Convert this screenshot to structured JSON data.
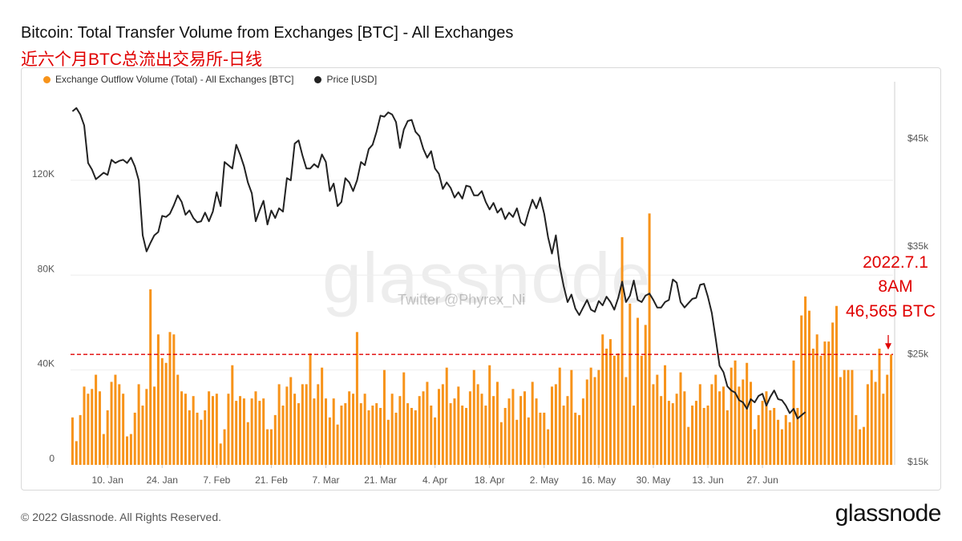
{
  "header": {
    "title": "Bitcoin: Total Transfer Volume from Exchanges [BTC] - All Exchanges",
    "subtitle": "近六个月BTC总流出交易所-日线"
  },
  "legend": {
    "outflow_label": "Exchange Outflow Volume (Total) - All Exchanges [BTC]",
    "price_label": "Price [USD]"
  },
  "watermark": {
    "brand": "glassnode",
    "twitter": "Twitter @Phyrex_Ni"
  },
  "annotation": {
    "date": "2022.7.1",
    "time": "8AM",
    "value": "46,565 BTC"
  },
  "footer": {
    "copyright": "© 2022 Glassnode. All Rights Reserved.",
    "brand": "glassnode"
  },
  "colors": {
    "bars": "#f7931a",
    "price": "#222222",
    "reference": "#e00000"
  },
  "chart_data": {
    "type": "bar",
    "start_date": "2022-01-01",
    "end_date": "2022-07-01",
    "x_ticks": [
      "10. Jan",
      "24. Jan",
      "7. Feb",
      "21. Feb",
      "7. Mar",
      "21. Mar",
      "4. Apr",
      "18. Apr",
      "2. May",
      "16. May",
      "30. May",
      "13. Jun",
      "27. Jun"
    ],
    "y_left": {
      "ticks": [
        "0",
        "40K",
        "80K",
        "120K"
      ],
      "values": [
        0,
        40000,
        80000,
        120000
      ],
      "range": [
        0,
        160000
      ]
    },
    "y_right": {
      "ticks": [
        "$15k",
        "$25k",
        "$35k",
        "$45k"
      ],
      "values": [
        15000,
        25000,
        35000,
        45000
      ],
      "range": [
        15000,
        50000
      ]
    },
    "reference_line": 46565,
    "series": [
      {
        "name": "Exchange Outflow Volume (Total) - All Exchanges [BTC]",
        "type": "bar",
        "values": [
          20000,
          10000,
          21000,
          33000,
          30000,
          32000,
          38000,
          31000,
          13000,
          23000,
          35000,
          38000,
          34000,
          30000,
          12000,
          13000,
          22000,
          34000,
          25000,
          32000,
          74000,
          33000,
          55000,
          45000,
          43000,
          56000,
          55000,
          38000,
          31000,
          30000,
          23000,
          29000,
          22000,
          19000,
          23000,
          31000,
          29000,
          30000,
          9000,
          15000,
          30000,
          42000,
          27000,
          29000,
          28000,
          18000,
          28000,
          31000,
          27000,
          28000,
          15000,
          15000,
          21000,
          34000,
          25000,
          33000,
          37000,
          30000,
          26000,
          34000,
          34000,
          47000,
          28000,
          34000,
          41000,
          28000,
          20000,
          28000,
          17000,
          25000,
          26000,
          31000,
          30000,
          56000,
          26000,
          30000,
          23000,
          25000,
          26000,
          24000,
          40000,
          19000,
          30000,
          22000,
          29000,
          39000,
          26000,
          24000,
          23000,
          29000,
          31000,
          35000,
          25000,
          20000,
          32000,
          34000,
          41000,
          26000,
          28000,
          33000,
          25000,
          24000,
          31000,
          40000,
          34000,
          30000,
          25000,
          42000,
          29000,
          35000,
          18000,
          24000,
          28000,
          32000,
          19000,
          29000,
          31000,
          20000,
          35000,
          28000,
          22000,
          22000,
          15000,
          33000,
          34000,
          41000,
          25000,
          29000,
          40000,
          22000,
          21000,
          28000,
          36000,
          41000,
          37000,
          40000,
          55000,
          49000,
          53000,
          46000,
          47000,
          96000,
          37000,
          68000,
          25000,
          62000,
          46000,
          59000,
          106000,
          34000,
          38000,
          29000,
          42000,
          27000,
          26000,
          30000,
          39000,
          31000,
          16000,
          25000,
          27000,
          34000,
          24000,
          25000,
          34000,
          38000,
          31000,
          33000,
          23000,
          41000,
          44000,
          33000,
          36000,
          43000,
          35000,
          15000,
          21000,
          27000,
          31000,
          23000,
          24000,
          19000,
          15000,
          21000,
          18000,
          44000,
          24000,
          63000,
          71000,
          65000,
          49000,
          55000,
          46000,
          52000,
          52000,
          60000,
          67000,
          37000,
          40000,
          40000,
          40000,
          21000,
          15000,
          16000,
          34000,
          40000,
          35000,
          49000,
          30000,
          38000
        ],
        "final_value": 46565
      },
      {
        "name": "Price [USD]",
        "type": "line",
        "values": [
          47500,
          47800,
          47200,
          46200,
          42700,
          42100,
          41200,
          41500,
          41800,
          41600,
          43000,
          42700,
          42900,
          43000,
          42700,
          43200,
          42400,
          41100,
          36000,
          34500,
          35300,
          36000,
          36300,
          37800,
          37700,
          38000,
          38800,
          39700,
          39100,
          37900,
          38300,
          37600,
          37200,
          37300,
          38100,
          37300,
          38200,
          40000,
          38700,
          42800,
          42500,
          42200,
          44400,
          43500,
          42400,
          40900,
          39900,
          37300,
          38300,
          39200,
          37000,
          38300,
          37600,
          38500,
          38200,
          41300,
          41100,
          44500,
          44800,
          43400,
          42200,
          42200,
          42600,
          42300,
          43500,
          42800,
          40100,
          40800,
          38700,
          39100,
          41300,
          40900,
          40100,
          41100,
          42800,
          42500,
          44000,
          44400,
          45600,
          47100,
          47000,
          47400,
          47200,
          46500,
          44100,
          45800,
          46600,
          46700,
          45600,
          45200,
          44000,
          43200,
          43800,
          42200,
          41700,
          40300,
          40900,
          40400,
          39500,
          40000,
          39400,
          40600,
          40500,
          39700,
          39700,
          40100,
          39100,
          38400,
          39000,
          38100,
          38500,
          37500,
          38100,
          37700,
          38500,
          37200,
          36900,
          38200,
          39300,
          38500,
          39500,
          38000,
          35800,
          34300,
          36000,
          33100,
          31300,
          29800,
          30500,
          29200,
          28600,
          29300,
          30000,
          29100,
          28900,
          29900,
          29500,
          30300,
          29800,
          29100,
          30200,
          31700,
          29800,
          30400,
          31800,
          30000,
          29800,
          30400,
          30600,
          30000,
          29300,
          29300,
          29800,
          30000,
          31900,
          31600,
          29800,
          29300,
          29700,
          30100,
          30200,
          31400,
          31500,
          30300,
          28800,
          26400,
          23900,
          23300,
          22000,
          21600,
          21400,
          20700,
          20500,
          19900,
          20800,
          20500,
          21100,
          21300,
          20200,
          21000,
          21600,
          20800,
          20700,
          20200,
          19500,
          19900,
          19000,
          19300
        ],
        "last_value": 19600
      }
    ]
  }
}
